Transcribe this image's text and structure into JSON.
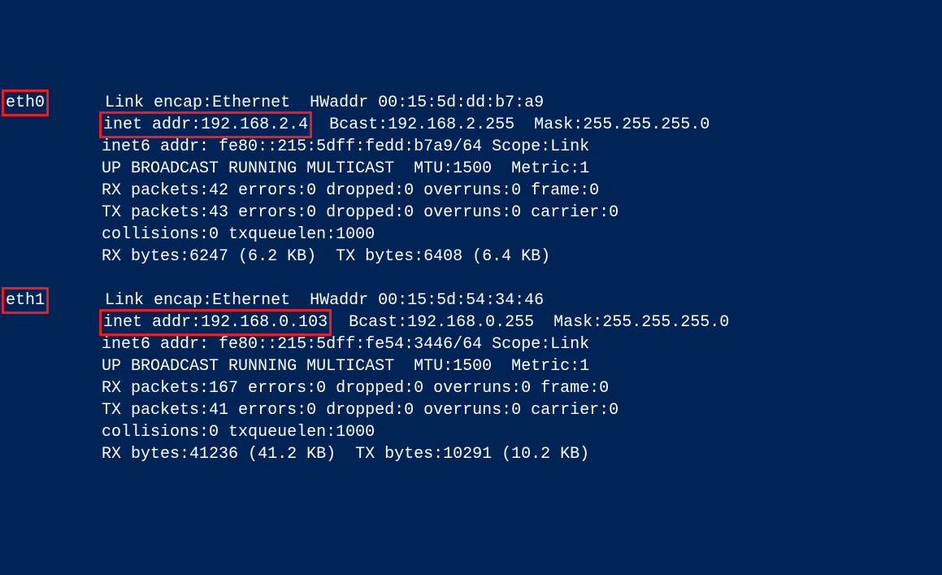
{
  "terminal": {
    "background_color": "#012456",
    "text_color": "#ffffff",
    "highlight_border_color": "#ed1c24",
    "font_family": "Consolas, Courier New, monospace",
    "font_size": 20
  },
  "interfaces": [
    {
      "name": "eth0",
      "link_encap": "Ethernet",
      "hwaddr": "00:15:5d:dd:b7:a9",
      "inet_addr_label": "inet addr:",
      "inet_addr": "192.168.2.4",
      "bcast": "192.168.2.255",
      "mask": "255.255.255.0",
      "inet6_line": "inet6 addr: fe80::215:5dff:fedd:b7a9/64 Scope:Link",
      "status_line": "UP BROADCAST RUNNING MULTICAST  MTU:1500  Metric:1",
      "rx_packets_line": "RX packets:42 errors:0 dropped:0 overruns:0 frame:0",
      "tx_packets_line": "TX packets:43 errors:0 dropped:0 overruns:0 carrier:0",
      "collisions_line": "collisions:0 txqueuelen:1000",
      "bytes_line": "RX bytes:6247 (6.2 KB)  TX bytes:6408 (6.4 KB)"
    },
    {
      "name": "eth1",
      "link_encap": "Ethernet",
      "hwaddr": "00:15:5d:54:34:46",
      "inet_addr_label": "inet addr:",
      "inet_addr": "192.168.0.103",
      "bcast": "192.168.0.255",
      "mask": "255.255.255.0",
      "inet6_line": "inet6 addr: fe80::215:5dff:fe54:3446/64 Scope:Link",
      "status_line": "UP BROADCAST RUNNING MULTICAST  MTU:1500  Metric:1",
      "rx_packets_line": "RX packets:167 errors:0 dropped:0 overruns:0 frame:0",
      "tx_packets_line": "TX packets:41 errors:0 dropped:0 overruns:0 carrier:0",
      "collisions_line": "collisions:0 txqueuelen:1000",
      "bytes_line": "RX bytes:41236 (41.2 KB)  TX bytes:10291 (10.2 KB)"
    }
  ],
  "labels": {
    "link_encap": "Link encap:",
    "hwaddr": "HWaddr",
    "bcast": "Bcast:",
    "mask": "Mask:"
  }
}
